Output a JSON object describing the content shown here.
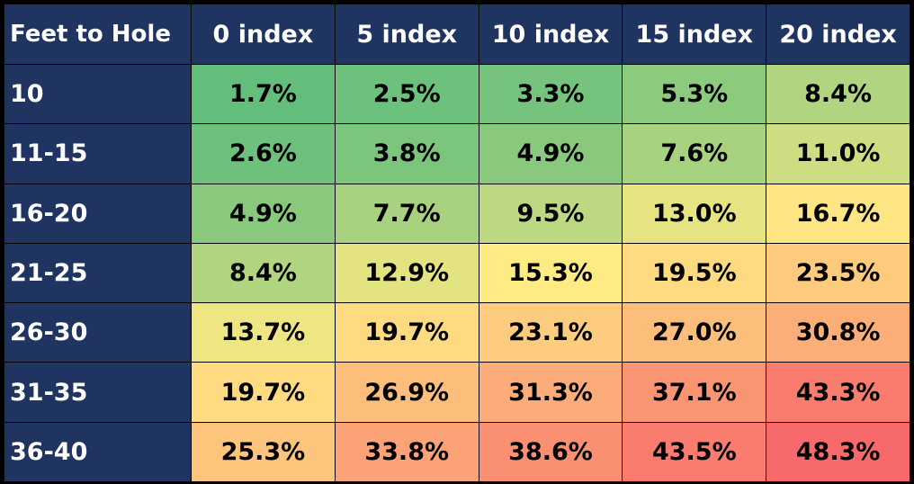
{
  "chart_data": {
    "type": "heatmap",
    "title": "",
    "row_header_label": "Feet to Hole",
    "columns": [
      "0 index",
      "5 index",
      "10 index",
      "15 index",
      "20 index"
    ],
    "rows": [
      "10",
      "11-15",
      "16-20",
      "21-25",
      "26-30",
      "31-35",
      "36-40"
    ],
    "values": [
      [
        1.7,
        2.5,
        3.3,
        5.3,
        8.4
      ],
      [
        2.6,
        3.8,
        4.9,
        7.6,
        11.0
      ],
      [
        4.9,
        7.7,
        9.5,
        13.0,
        16.7
      ],
      [
        8.4,
        12.9,
        15.3,
        19.5,
        23.5
      ],
      [
        13.7,
        19.7,
        23.1,
        27.0,
        30.8
      ],
      [
        19.7,
        26.9,
        31.3,
        37.1,
        43.3
      ],
      [
        25.3,
        33.8,
        38.6,
        43.5,
        48.3
      ]
    ],
    "value_suffix": "%",
    "decimals": 1,
    "color_scale": {
      "low": "#63be7b",
      "mid": "#ffeb84",
      "high": "#f8696b"
    },
    "header_color": "#1f3461"
  }
}
